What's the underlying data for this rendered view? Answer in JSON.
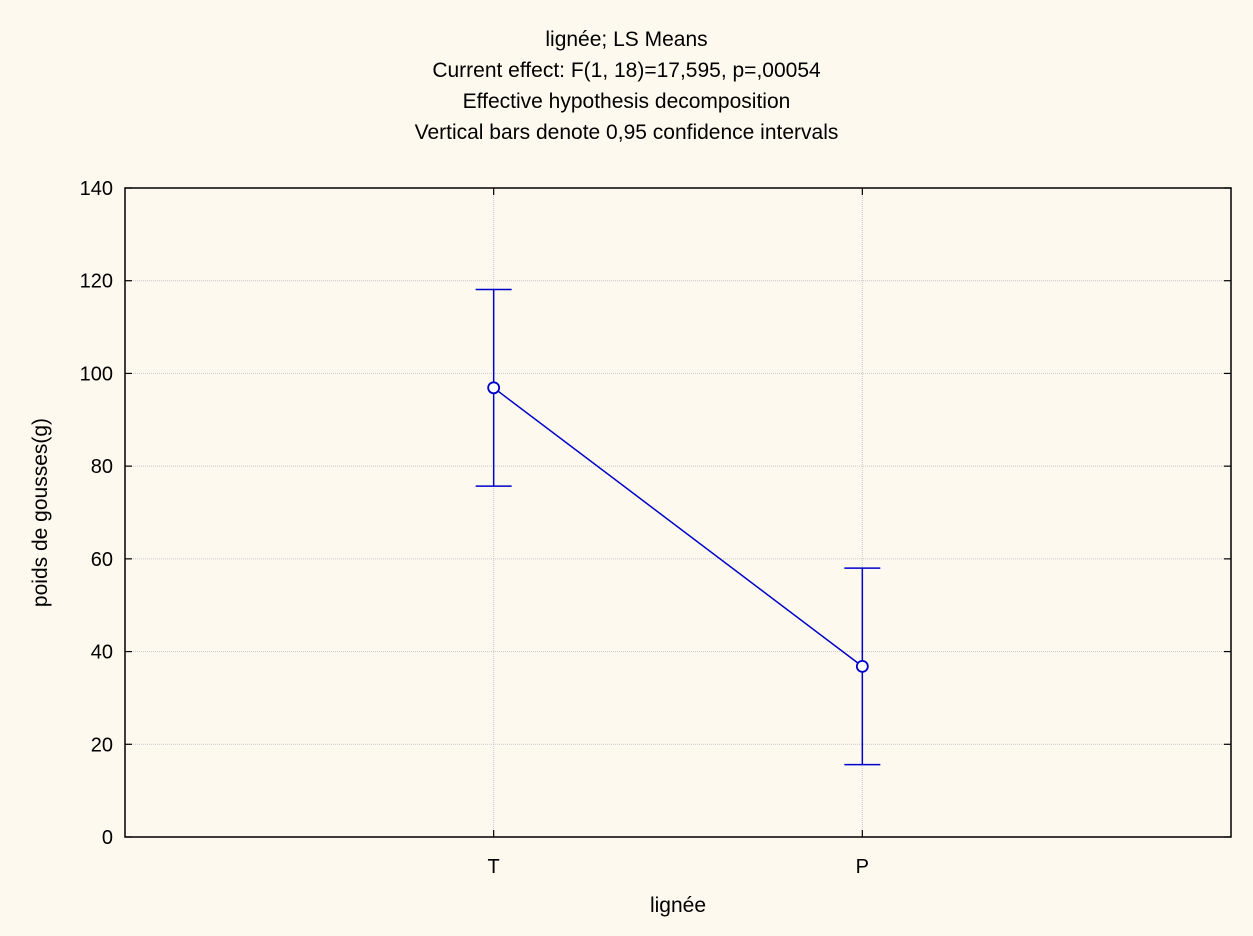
{
  "chart_data": {
    "type": "line",
    "title": "lignée; LS Means",
    "subtitle_lines": [
      "Current effect: F(1, 18)=17,595, p=,00054",
      "Effective hypothesis decomposition",
      "Vertical bars denote 0,95 confidence intervals"
    ],
    "xlabel": "lignée",
    "ylabel": "poids de gousses(g)",
    "categories": [
      "T",
      "P"
    ],
    "series": [
      {
        "values": [
          96.9,
          36.8
        ],
        "ci_lower": [
          75.7,
          15.6
        ],
        "ci_upper": [
          118.1,
          58.0
        ],
        "color": "#0000cc"
      }
    ],
    "ylim": [
      0,
      140
    ],
    "yticks": [
      0,
      20,
      40,
      60,
      80,
      100,
      120,
      140
    ],
    "grid": true,
    "legend": "none"
  }
}
